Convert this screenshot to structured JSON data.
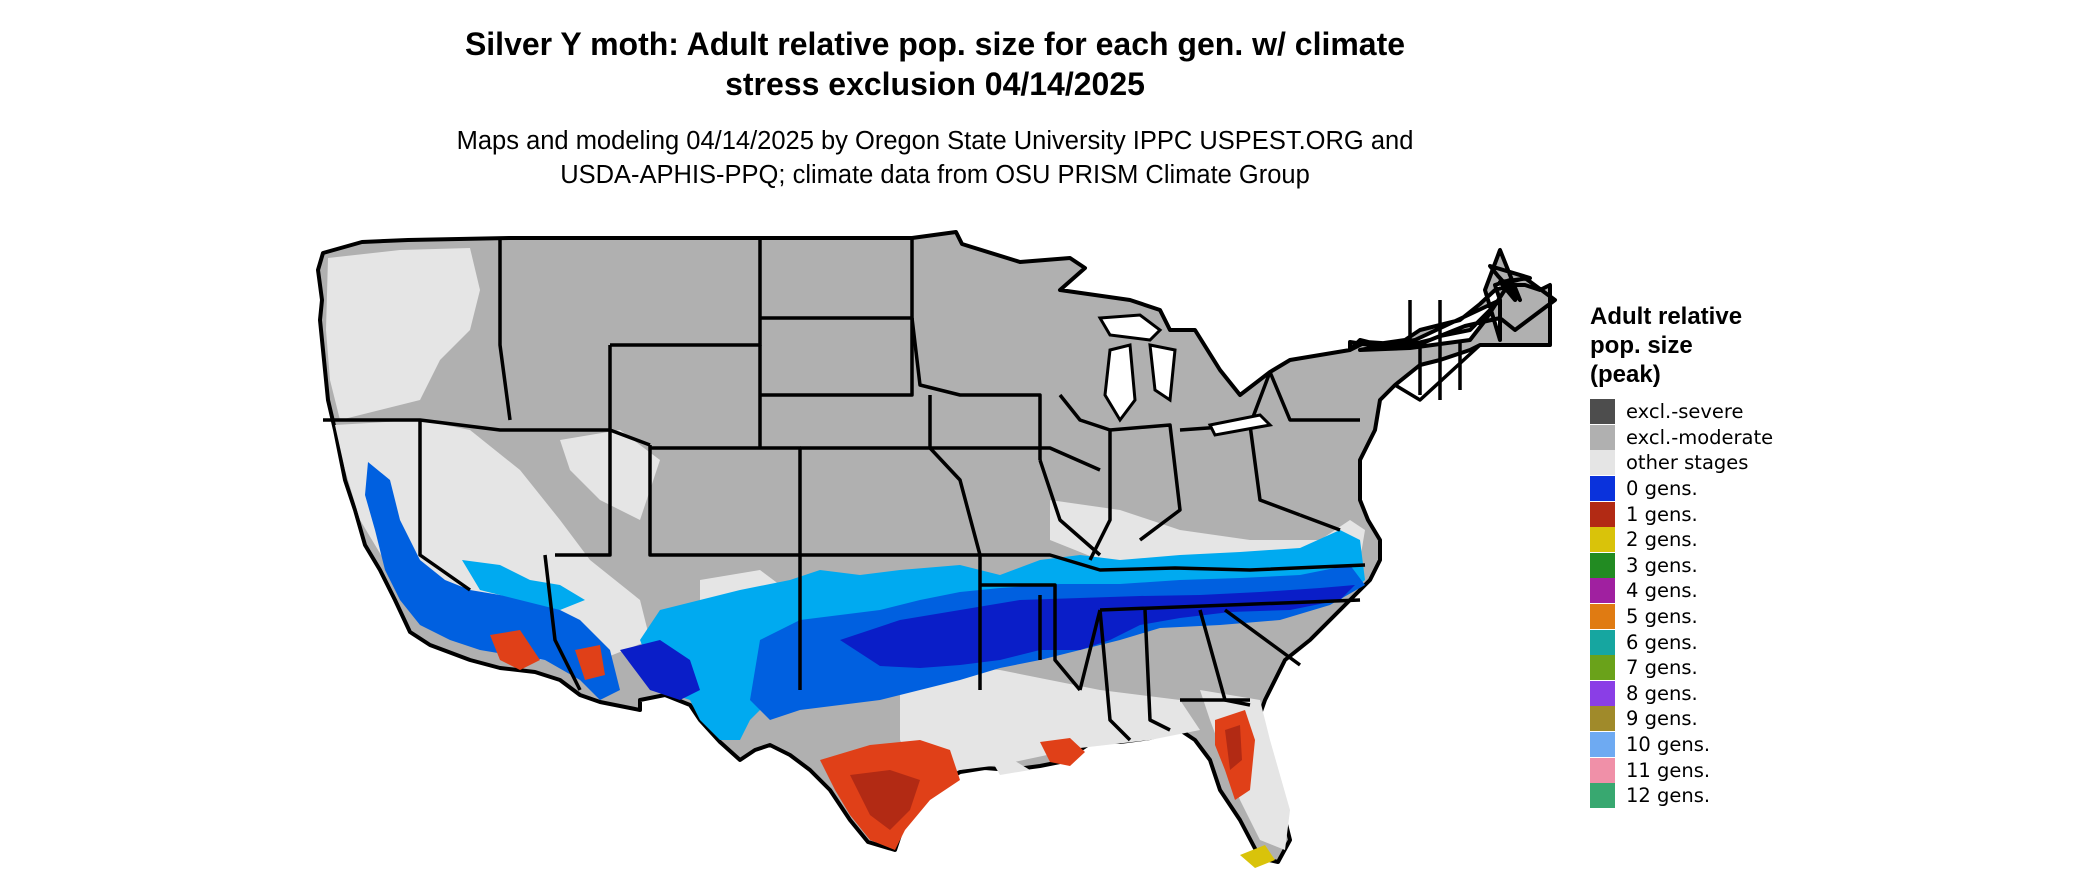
{
  "title": {
    "line1": "Silver Y moth: Adult relative pop. size for each gen. w/ climate",
    "line2": "stress exclusion 04/14/2025"
  },
  "subtitle": {
    "line1": "Maps and modeling 04/14/2025 by Oregon State University IPPC USPEST.ORG and",
    "line2": "USDA-APHIS-PPQ; climate data from OSU PRISM Climate Group"
  },
  "legend": {
    "title_line1": "Adult relative",
    "title_line2": "pop. size",
    "title_line3": "(peak)",
    "items": [
      {
        "label": "excl.-severe",
        "color": "#4d4d4d"
      },
      {
        "label": "excl.-moderate",
        "color": "#b0b0b0"
      },
      {
        "label": "other stages",
        "color": "#e5e5e5"
      },
      {
        "label": "0 gens.",
        "color": "#0a32dc"
      },
      {
        "label": "1 gens.",
        "color": "#b22a14"
      },
      {
        "label": "2 gens.",
        "color": "#d9c30a"
      },
      {
        "label": "3 gens.",
        "color": "#228b22"
      },
      {
        "label": "4 gens.",
        "color": "#a020a0"
      },
      {
        "label": "5 gens.",
        "color": "#e07b12"
      },
      {
        "label": "6 gens.",
        "color": "#16a6a0"
      },
      {
        "label": "7 gens.",
        "color": "#6aa21a"
      },
      {
        "label": "8 gens.",
        "color": "#8a3ee6"
      },
      {
        "label": "9 gens.",
        "color": "#a08a2a"
      },
      {
        "label": "10 gens.",
        "color": "#6eaaf2"
      },
      {
        "label": "11 gens.",
        "color": "#f090a8"
      },
      {
        "label": "12 gens.",
        "color": "#38a870"
      }
    ]
  },
  "map": {
    "colors": {
      "excl_moderate": "#b0b0b0",
      "other_stages": "#e5e5e5",
      "light_blue": "#00aaf0",
      "mid_blue": "#0060e0",
      "dark_blue": "#0a1ec8",
      "red": "#e04018",
      "dark_red": "#b22a14",
      "yellow": "#d9c30a",
      "borders": "#000000"
    }
  }
}
